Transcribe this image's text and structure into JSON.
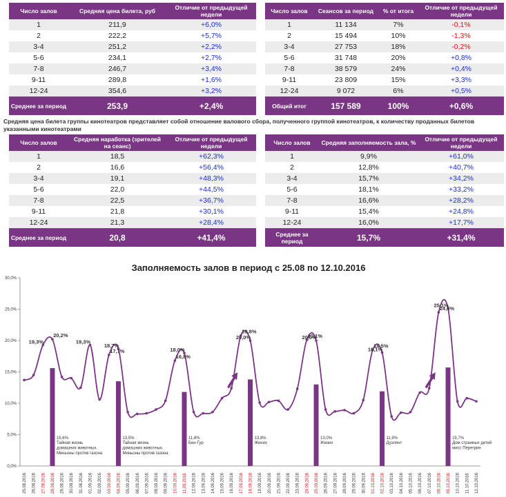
{
  "table_price": {
    "headers": [
      "Число залов",
      "Средняя цена билета, руб",
      "Отличие от предыдущей недели"
    ],
    "rows": [
      {
        "halls": "1",
        "value": "211,9",
        "diff": "+6,0%"
      },
      {
        "halls": "2",
        "value": "222,2",
        "diff": "+5,7%"
      },
      {
        "halls": "3-4",
        "value": "251,2",
        "diff": "+2,2%"
      },
      {
        "halls": "5-6",
        "value": "234,1",
        "diff": "+2,7%"
      },
      {
        "halls": "7-8",
        "value": "246,7",
        "diff": "+3,4%"
      },
      {
        "halls": "9-11",
        "value": "289,8",
        "diff": "+1,6%"
      },
      {
        "halls": "12-24",
        "value": "354,6",
        "diff": "+3,2%"
      }
    ],
    "footer": {
      "label": "Среднее за период",
      "value": "253,9",
      "diff": "+2,4%"
    }
  },
  "table_sessions": {
    "headers": [
      "Число залов",
      "Сеансов за период",
      "% от итога",
      "Отличие от предыдущей недели"
    ],
    "rows": [
      {
        "halls": "1",
        "value": "11 134",
        "share": "7%",
        "diff": "-0,1%"
      },
      {
        "halls": "2",
        "value": "15 494",
        "share": "10%",
        "diff": "-1,3%"
      },
      {
        "halls": "3-4",
        "value": "27 753",
        "share": "18%",
        "diff": "-0,2%"
      },
      {
        "halls": "5-6",
        "value": "31 748",
        "share": "20%",
        "diff": "+0,8%"
      },
      {
        "halls": "7-8",
        "value": "38 579",
        "share": "24%",
        "diff": "+0,4%"
      },
      {
        "halls": "9-11",
        "value": "23 809",
        "share": "15%",
        "diff": "+3,3%"
      },
      {
        "halls": "12-24",
        "value": "9 072",
        "share": "6%",
        "diff": "+0,5%"
      }
    ],
    "footer": {
      "label": "Общий итог",
      "value": "157 589",
      "share": "100%",
      "diff": "+0,6%"
    }
  },
  "note": "Средняя цена билета группы кинотеатров представляет собой отношение валового сбора, полученного группой кинотеатров, к количеству проданных билетов указанными кинотеатрами",
  "table_attendance": {
    "headers": [
      "Число залов",
      "Средняя наработка (зрителей на сеанс)",
      "Отличие от предыдущей недели"
    ],
    "rows": [
      {
        "halls": "1",
        "value": "18,5",
        "diff": "+62,3%"
      },
      {
        "halls": "2",
        "value": "16,6",
        "diff": "+56,4%"
      },
      {
        "halls": "3-4",
        "value": "19,1",
        "diff": "+48,3%"
      },
      {
        "halls": "5-6",
        "value": "22,0",
        "diff": "+44,5%"
      },
      {
        "halls": "7-8",
        "value": "22,5",
        "diff": "+36,7%"
      },
      {
        "halls": "9-11",
        "value": "21,8",
        "diff": "+30,1%"
      },
      {
        "halls": "12-24",
        "value": "21,3",
        "diff": "+28,4%"
      }
    ],
    "footer": {
      "label": "Среднее за период",
      "value": "20,8",
      "diff": "+41,4%"
    }
  },
  "table_occupancy": {
    "headers": [
      "Число залов",
      "Средняя заполняемость зала, %",
      "Отличие от предыдущей недели"
    ],
    "rows": [
      {
        "halls": "1",
        "value": "9,9%",
        "diff": "+61,0%"
      },
      {
        "halls": "2",
        "value": "12,8%",
        "diff": "+40,7%"
      },
      {
        "halls": "3-4",
        "value": "15,7%",
        "diff": "+34,2%"
      },
      {
        "halls": "5-6",
        "value": "18,1%",
        "diff": "+33,2%"
      },
      {
        "halls": "7-8",
        "value": "16,6%",
        "diff": "+28,2%"
      },
      {
        "halls": "9-11",
        "value": "15,4%",
        "diff": "+24,8%"
      },
      {
        "halls": "12-24",
        "value": "16,0%",
        "diff": "+17,7%"
      }
    ],
    "footer": {
      "label": "Среднее за период",
      "value": "15,7%",
      "diff": "+31,4%"
    }
  },
  "colors": {
    "purple": "#7a3585",
    "positive": "#1a2ecc",
    "negative": "#e01010",
    "weekend": "#e01010"
  },
  "chart_data": {
    "type": "line",
    "title": "Заполняемость залов в период с 25.08 по 12.10.2016",
    "ylim": [
      0,
      30
    ],
    "yticks": [
      "0,0%",
      "5,0%",
      "10,0%",
      "15,0%",
      "20,0%",
      "25,0%",
      "30,0%"
    ],
    "y_tick_values": [
      0,
      5,
      10,
      15,
      20,
      25,
      30
    ],
    "x": [
      "25.08.2016",
      "26.08.2016",
      "27.08.2016",
      "28.08.2016",
      "29.08.2016",
      "30.08.2016",
      "31.08.2016",
      "01.09.2016",
      "02.09.2016",
      "03.09.2016",
      "04.09.2016",
      "05.09.2016",
      "06.09.2016",
      "07.09.2016",
      "08.09.2016",
      "09.09.2016",
      "10.09.2016",
      "11.09.2016",
      "12.09.2016",
      "13.09.2016",
      "14.09.2016",
      "15.09.2016",
      "16.09.2016",
      "17.09.2016",
      "18.09.2016",
      "19.09.2016",
      "20.09.2016",
      "21.09.2016",
      "22.09.2016",
      "23.09.2016",
      "24.09.2016",
      "25.09.2016",
      "26.09.2016",
      "27.09.2016",
      "28.09.2016",
      "29.09.2016",
      "30.09.2016",
      "01.10.2016",
      "02.10.2016",
      "03.10.2016",
      "04.10.2016",
      "05.10.2016",
      "06.10.2016",
      "07.10.2016",
      "08.10.2016",
      "09.10.2016",
      "10.10.2016",
      "11.10.2016",
      "12.10.2016"
    ],
    "weekend_x": [
      "27.08.2016",
      "28.08.2016",
      "03.09.2016",
      "04.09.2016",
      "10.09.2016",
      "11.09.2016",
      "17.09.2016",
      "18.09.2016",
      "24.09.2016",
      "25.09.2016",
      "01.10.2016",
      "02.10.2016",
      "08.10.2016",
      "09.10.2016"
    ],
    "series": [
      {
        "values": [
          13.7,
          14.5,
          19.3,
          20.2,
          14.2,
          14.0,
          12.5,
          19.3,
          10.6,
          17.7,
          18.7,
          8.6,
          8.3,
          8.4,
          9.0,
          10.4,
          16.8,
          18.0,
          8.6,
          8.4,
          8.6,
          10.8,
          12.4,
          20.8,
          20.0,
          10.1,
          10.2,
          10.4,
          9.0,
          12.3,
          20.1,
          20.0,
          9.0,
          8.7,
          8.9,
          8.4,
          10.5,
          18.5,
          18.1,
          7.9,
          8.5,
          8.6,
          11.7,
          12.4,
          24.5,
          25.1,
          10.3,
          10.8,
          10.3
        ]
      }
    ],
    "point_labels": [
      {
        "x": "27.08.2016",
        "text": "19,3%"
      },
      {
        "x": "28.08.2016",
        "text": "20,2%"
      },
      {
        "x": "01.09.2016",
        "text": "19,3%"
      },
      {
        "x": "03.09.2016",
        "text": "17,7%"
      },
      {
        "x": "04.09.2016",
        "text": "18,7%"
      },
      {
        "x": "10.09.2016",
        "text": "16,8%"
      },
      {
        "x": "11.09.2016",
        "text": "18,0%"
      },
      {
        "x": "17.09.2016",
        "text": "20,8%"
      },
      {
        "x": "18.09.2016",
        "text": "20,0%"
      },
      {
        "x": "24.09.2016",
        "text": "20,1%"
      },
      {
        "x": "25.09.2016",
        "text": "20,0%"
      },
      {
        "x": "01.10.2016",
        "text": "18,5%"
      },
      {
        "x": "02.10.2016",
        "text": "18,1%"
      },
      {
        "x": "08.10.2016",
        "text": "24,5%"
      },
      {
        "x": "09.10.2016",
        "text": "25,1%"
      }
    ],
    "bars": [
      {
        "x": "28.08.2016",
        "value": 15.6,
        "label": "15,6%",
        "films": [
          "Тайная жизнь",
          "домашних животных.",
          "Миньоны против газона"
        ]
      },
      {
        "x": "04.09.2016",
        "value": 13.5,
        "label": "13,5%",
        "films": [
          "Тайная жизнь",
          "домашних животных.",
          "Миньоны против газона"
        ]
      },
      {
        "x": "11.09.2016",
        "value": 11.8,
        "label": "11,8%",
        "films": [
          "Бен-Гур"
        ]
      },
      {
        "x": "18.09.2016",
        "value": 13.8,
        "label": "13,8%",
        "films": [
          "Жених"
        ]
      },
      {
        "x": "25.09.2016",
        "value": 13.0,
        "label": "13,0%",
        "films": [
          "Жених"
        ]
      },
      {
        "x": "02.10.2016",
        "value": 11.9,
        "label": "11,9%",
        "films": [
          "Дуэлянт"
        ]
      },
      {
        "x": "09.10.2016",
        "value": 15.7,
        "label": "15,7%",
        "films": [
          "Дом странных детей",
          "мисс Перегрин"
        ]
      }
    ],
    "arrows_at": [
      "16.09.2016",
      "07.10.2016"
    ],
    "grid": false
  }
}
